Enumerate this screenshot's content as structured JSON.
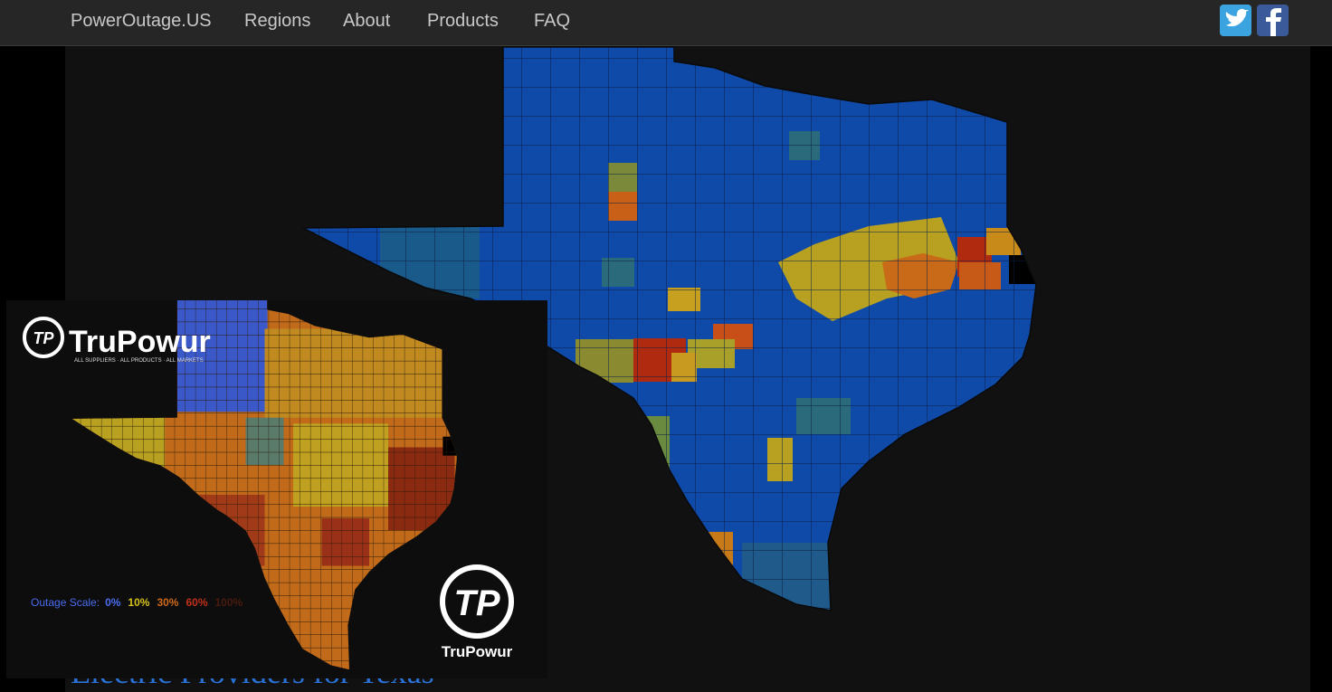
{
  "nav": {
    "brand": "PowerOutage.US",
    "links": [
      "Regions",
      "About",
      "Products",
      "FAQ"
    ]
  },
  "heading": "Electric Providers for Texas",
  "inset": {
    "logo": "TruPowur",
    "tagline": "ALL SUPPLIERS · ALL PRODUCTS · ALL MARKETS",
    "scale_label": "Outage Scale:",
    "scale": [
      {
        "label": "0%",
        "color": "#4a6cf0"
      },
      {
        "label": "10%",
        "color": "#d6c21a"
      },
      {
        "label": "30%",
        "color": "#d06a1a"
      },
      {
        "label": "60%",
        "color": "#c0301a"
      },
      {
        "label": "100%",
        "color": "#4a1a10"
      }
    ],
    "badge": "TruPowur"
  }
}
